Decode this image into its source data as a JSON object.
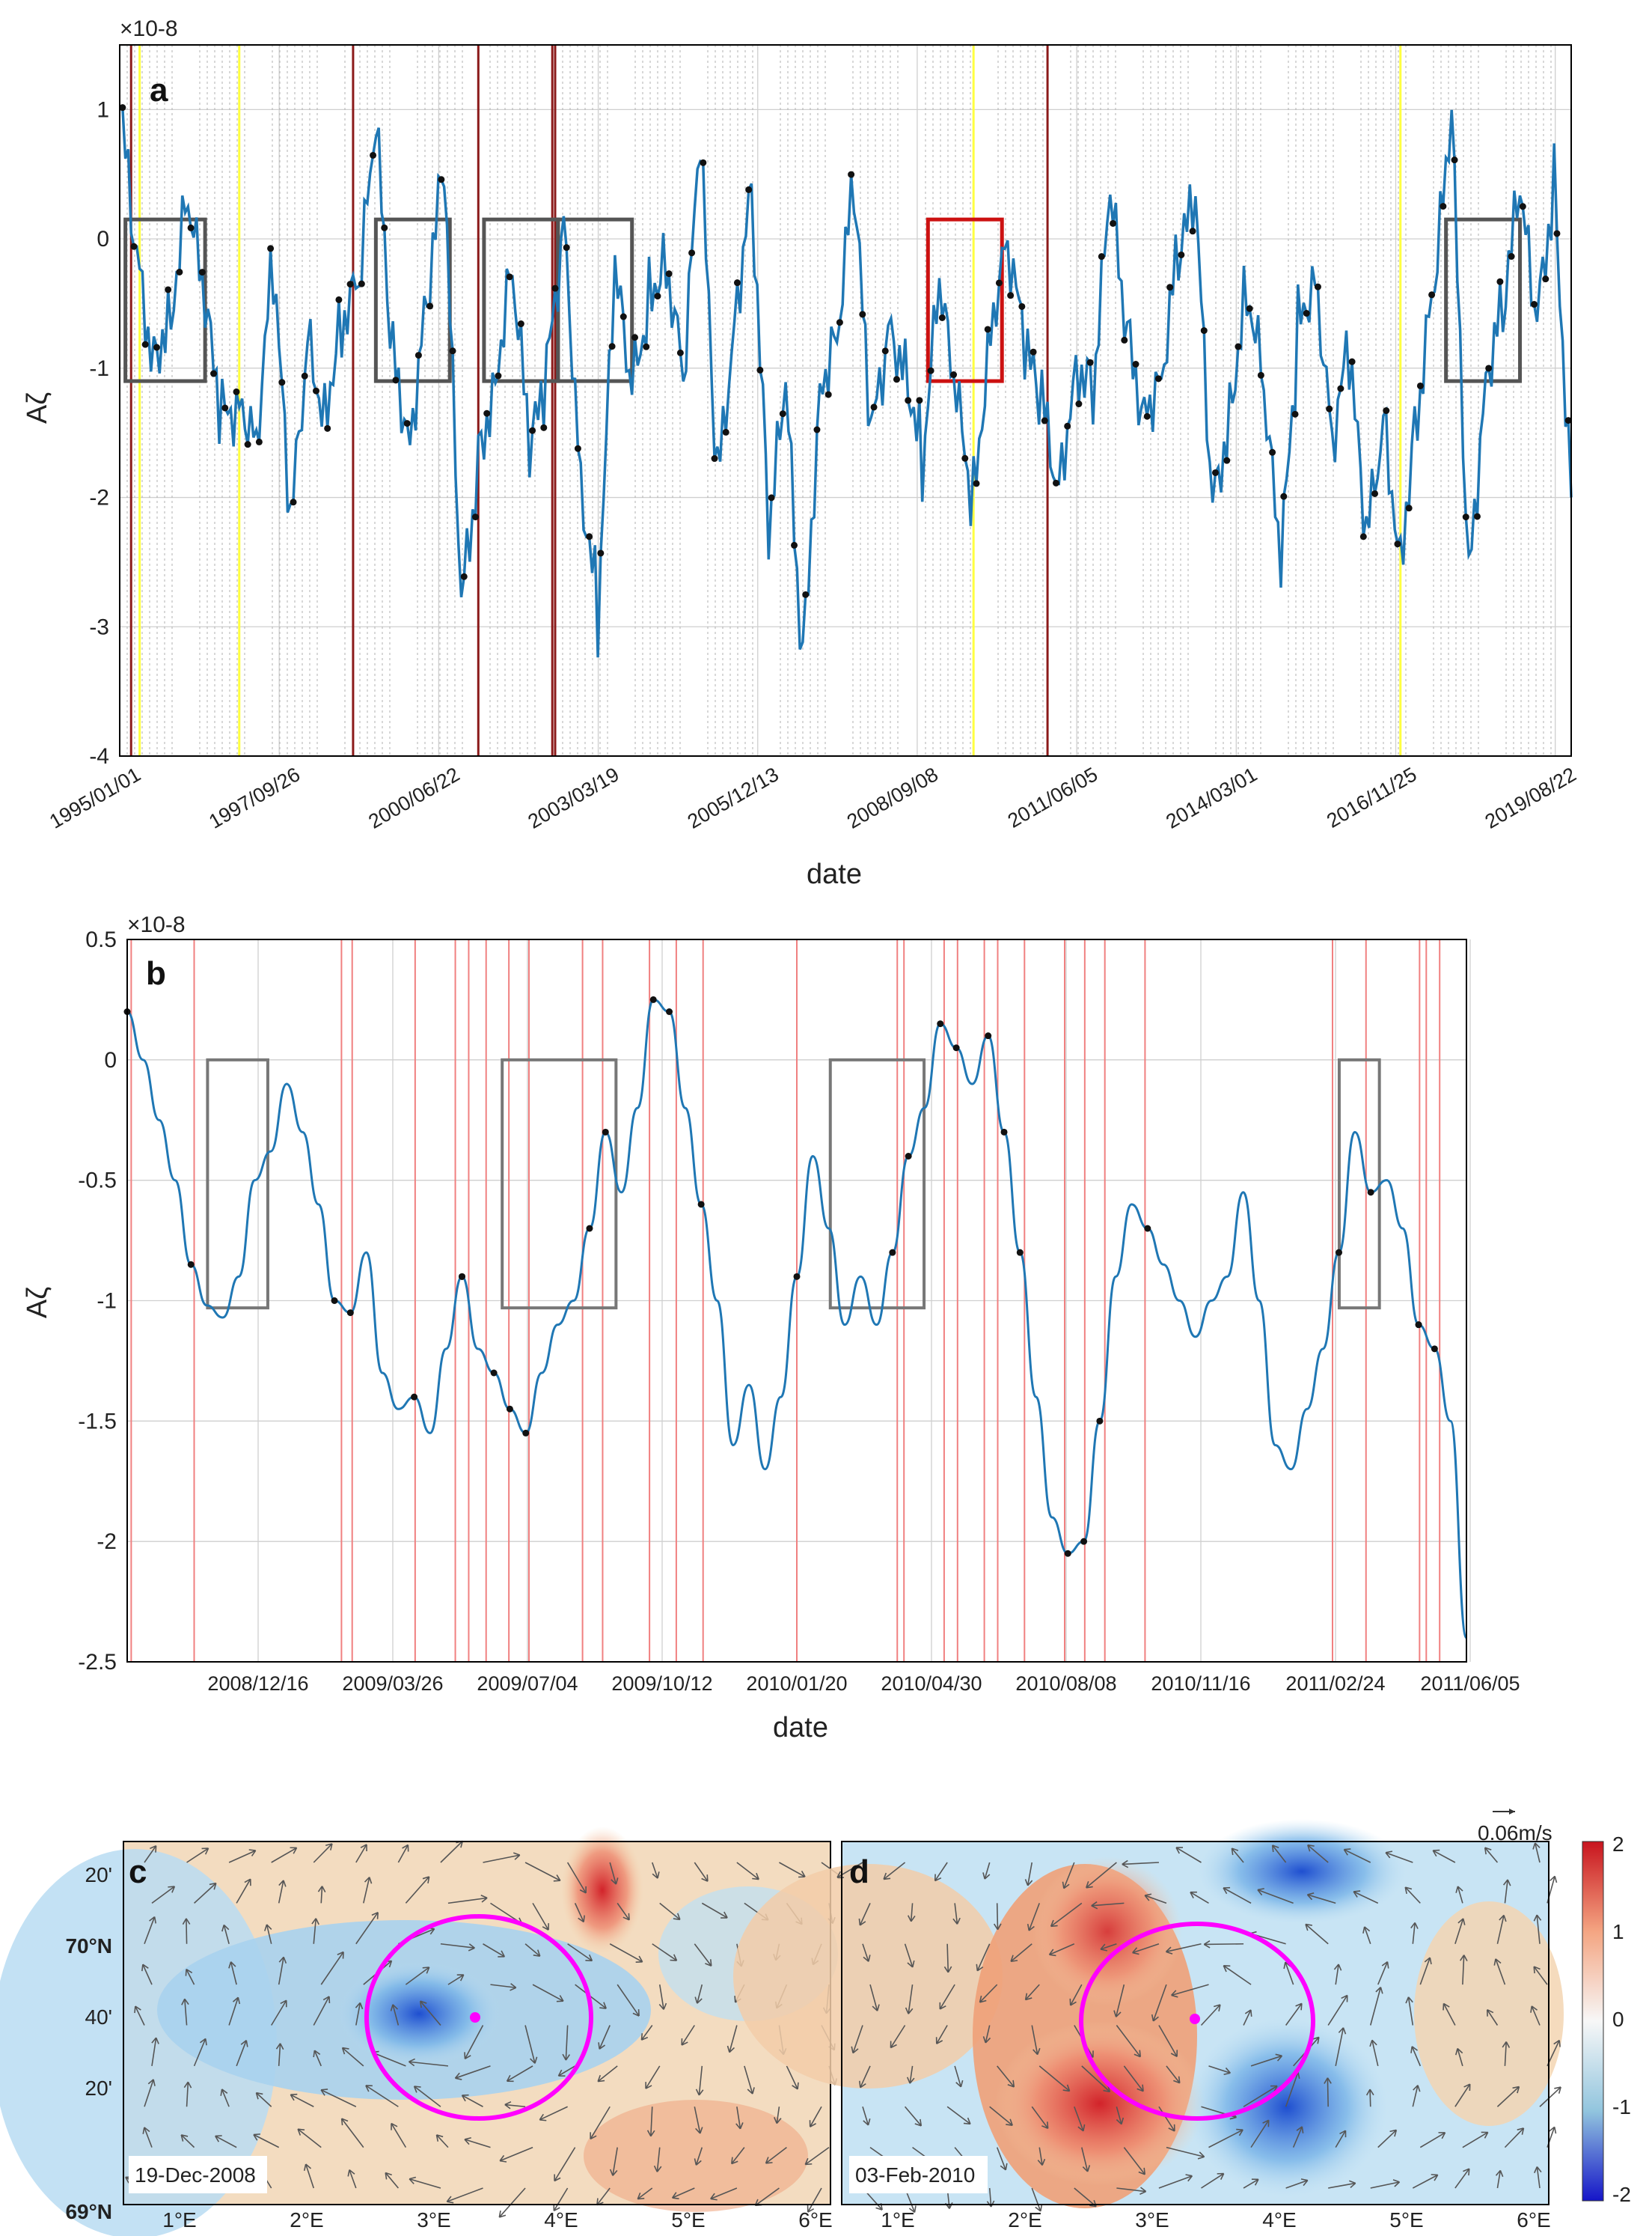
{
  "chart_data": [
    {
      "panel": "a",
      "type": "line",
      "exponent_label": "×10-8",
      "ylabel": "Aζ",
      "xlabel": "date",
      "ylim": [
        -4,
        1.5
      ],
      "yticks": [
        "1",
        "0",
        "-1",
        "-2",
        "-3",
        "-4"
      ],
      "xticks": [
        "1995/01/01",
        "1997/09/26",
        "2000/06/22",
        "2003/03/19",
        "2005/12/13",
        "2008/09/08",
        "2011/06/05",
        "2014/03/01",
        "2016/11/25",
        "2019/08/22"
      ],
      "xlim_years": [
        1995.0,
        2020.5
      ],
      "series_years": [
        1995.0,
        1995.3,
        1995.6,
        1995.9,
        1996.2,
        1996.5,
        1996.8,
        1997.1,
        1997.4,
        1997.7,
        1998.0,
        1998.3,
        1998.6,
        1998.9,
        1999.2,
        1999.5,
        1999.8,
        2000.1,
        2000.4,
        2000.7,
        2001.0,
        2001.3,
        2001.6,
        2001.9,
        2002.2,
        2002.5,
        2002.8,
        2003.1,
        2003.4,
        2003.7,
        2004.0,
        2004.3,
        2004.6,
        2004.9,
        2005.2,
        2005.5,
        2005.8,
        2006.1,
        2006.4,
        2006.7,
        2007.0,
        2007.3,
        2007.6,
        2007.9,
        2008.2,
        2008.5,
        2008.8,
        2009.1,
        2009.4,
        2009.7,
        2010.0,
        2010.3,
        2010.6,
        2010.9,
        2011.2,
        2011.5,
        2011.8,
        2012.1,
        2012.4,
        2012.7,
        2013.0,
        2013.3,
        2013.6,
        2013.9,
        2014.2,
        2014.5,
        2014.8,
        2015.1,
        2015.4,
        2015.7,
        2016.0,
        2016.3,
        2016.6,
        2016.9,
        2017.2,
        2017.5,
        2017.8,
        2018.1,
        2018.4,
        2018.7,
        2019.0,
        2019.3,
        2019.6,
        2019.9,
        2020.2,
        2020.5
      ],
      "series_values": [
        1.0,
        -0.2,
        -0.9,
        -0.5,
        0.3,
        -0.6,
        -1.4,
        -1.2,
        -1.5,
        -0.2,
        -2.3,
        -0.8,
        -1.3,
        -0.6,
        -0.4,
        0.8,
        -0.9,
        -1.5,
        -0.4,
        0.5,
        -2.9,
        -1.7,
        -1.0,
        -0.2,
        -1.7,
        -1.1,
        0.2,
        -1.8,
        -2.9,
        -0.3,
        -1.2,
        -0.4,
        -0.1,
        -1.1,
        0.7,
        -1.9,
        -0.6,
        0.5,
        -2.3,
        -1.2,
        -3.3,
        -1.1,
        -0.7,
        0.4,
        -1.6,
        -0.7,
        -0.9,
        -1.7,
        -0.4,
        -1.3,
        -2.0,
        -0.6,
        0.0,
        -0.9,
        -1.3,
        -1.9,
        -0.9,
        -1.2,
        0.3,
        -0.8,
        -1.3,
        -1.0,
        -0.1,
        0.2,
        -2.1,
        -1.3,
        -0.3,
        -1.2,
        -2.6,
        -0.7,
        -0.2,
        -1.5,
        -0.9,
        -2.4,
        -1.4,
        -2.4,
        -1.3,
        -0.4,
        0.9,
        -2.6,
        -1.0,
        -0.5,
        0.3,
        -0.7,
        0.5,
        -2.0
      ],
      "boxes_years": [
        [
          1995.1,
          1996.5
        ],
        [
          1999.5,
          2000.8
        ],
        [
          2001.4,
          2002.7
        ],
        [
          2002.7,
          2004.0
        ],
        [
          2009.2,
          2010.5
        ],
        [
          2018.3,
          2019.6
        ]
      ],
      "box_ylim": [
        -1.1,
        0.15
      ],
      "highlight_box_index": 4
    },
    {
      "panel": "b",
      "type": "line",
      "exponent_label": "×10-8",
      "ylabel": "Aζ",
      "xlabel": "date",
      "ylim": [
        -2.5,
        0.5
      ],
      "yticks": [
        "0.5",
        "0",
        "-0.5",
        "-1",
        "-1.5",
        "-2",
        "-2.5"
      ],
      "xticks": [
        "2008/12/16",
        "2009/03/26",
        "2009/07/04",
        "2009/10/12",
        "2010/01/20",
        "2010/04/30",
        "2010/08/08",
        "2010/11/16",
        "2011/02/24",
        "2011/06/05"
      ],
      "series_values": [
        0.2,
        0.0,
        -0.25,
        -0.5,
        -0.85,
        -1.02,
        -1.07,
        -0.9,
        -0.5,
        -0.38,
        -0.1,
        -0.3,
        -0.6,
        -1.0,
        -1.05,
        -0.8,
        -1.3,
        -1.45,
        -1.4,
        -1.55,
        -1.2,
        -0.9,
        -1.2,
        -1.3,
        -1.45,
        -1.55,
        -1.3,
        -1.1,
        -1.0,
        -0.7,
        -0.3,
        -0.55,
        -0.2,
        0.25,
        0.2,
        -0.2,
        -0.6,
        -1.0,
        -1.6,
        -1.35,
        -1.7,
        -1.4,
        -0.9,
        -0.4,
        -0.7,
        -1.1,
        -0.9,
        -1.1,
        -0.8,
        -0.4,
        -0.2,
        0.15,
        0.05,
        -0.1,
        0.1,
        -0.3,
        -0.8,
        -1.4,
        -1.9,
        -2.05,
        -2.0,
        -1.5,
        -0.9,
        -0.6,
        -0.7,
        -0.85,
        -1.0,
        -1.15,
        -1.0,
        -0.9,
        -0.55,
        -1.0,
        -1.6,
        -1.7,
        -1.45,
        -1.2,
        -0.8,
        -0.3,
        -0.55,
        -0.5,
        -0.7,
        -1.1,
        -1.2,
        -1.5,
        -2.4
      ],
      "boxes_fraction": [
        [
          0.06,
          0.105
        ],
        [
          0.28,
          0.365
        ],
        [
          0.525,
          0.595
        ],
        [
          0.905,
          0.935
        ]
      ],
      "box_ylim": [
        -1.03,
        0.0
      ]
    }
  ],
  "labels": {
    "panel_a": "a",
    "panel_b": "b",
    "panel_c": "c",
    "panel_d": "d",
    "date_c": "19-Dec-2008",
    "date_d": "03-Feb-2010",
    "velocity_scale": "0.06m/s",
    "colorbar_ticks": [
      "2",
      "1",
      "0",
      "-1",
      "-2"
    ],
    "map_lat_ticks": [
      "20'",
      "70°N",
      "40'",
      "20'",
      "69°N"
    ],
    "map_lon_ticks": [
      "1°E",
      "2°E",
      "3°E",
      "4°E",
      "5°E",
      "6°E"
    ]
  },
  "colors": {
    "series": "#1f77b4",
    "red_line": "#f08080",
    "dark_red": "#8b1a1a",
    "yellow": "#ffff40",
    "box": "#555555",
    "box_red": "#cc1111",
    "ellipse": "#ff00ff"
  }
}
